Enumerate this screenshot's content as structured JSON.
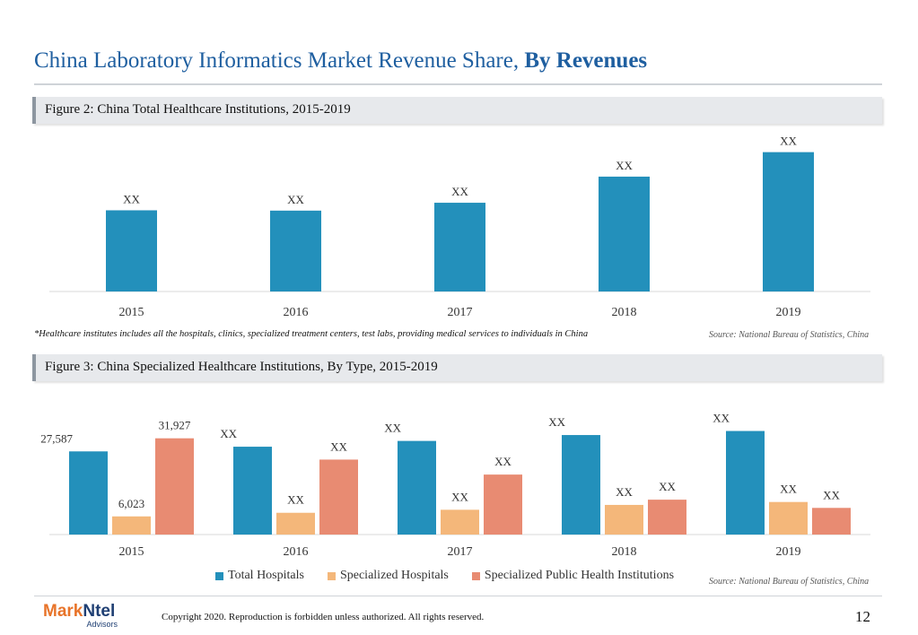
{
  "slide": {
    "title_main": "China Laboratory Informatics Market Revenue Share,",
    "title_bold": "By Revenues",
    "page_number": "12",
    "copyright": "Copyright 2020. Reproduction is forbidden unless authorized. All rights reserved.",
    "logo": {
      "part1": "Mark",
      "part2": "Ntel",
      "sub": "Advisors"
    }
  },
  "figure2": {
    "heading": "Figure 2: China Total Healthcare Institutions, 2015-2019",
    "footnote": "*Healthcare institutes includes all the hospitals, clinics, specialized treatment centers, test labs, providing medical services to individuals in China",
    "source": "Source: National Bureau of Statistics, China"
  },
  "figure3": {
    "heading": "Figure 3: China Specialized Healthcare Institutions, By Type, 2015-2019",
    "source": "Source: National Bureau of Statistics, China"
  },
  "chart_data": [
    {
      "type": "bar",
      "title": "Figure 2: China Total Healthcare Institutions, 2015-2019",
      "categories": [
        "2015",
        "2016",
        "2017",
        "2018",
        "2019"
      ],
      "values": [
        983528,
        983394,
        986649,
        997433,
        1007545
      ],
      "data_labels": [
        "XX",
        "XX",
        "XX",
        "XX",
        "XX"
      ],
      "ylim": [
        950000,
        1010000
      ],
      "grid": false,
      "colors": [
        "#2390bb"
      ]
    },
    {
      "type": "bar",
      "title": "Figure 3: China Specialized Healthcare Institutions, By Type, 2015-2019",
      "categories": [
        "2015",
        "2016",
        "2017",
        "2018",
        "2019"
      ],
      "series": [
        {
          "name": "Total Hospitals",
          "values": [
            27587,
            29140,
            31056,
            33009,
            34354
          ],
          "labels": [
            "27,587",
            "XX",
            "XX",
            "XX",
            "XX"
          ],
          "color": "#2390bb"
        },
        {
          "name": "Specialized Hospitals",
          "values": [
            6023,
            7220,
            8220,
            9833,
            10800
          ],
          "labels": [
            "6,023",
            "XX",
            "XX",
            "XX",
            "XX"
          ],
          "color": "#f4b77a"
        },
        {
          "name": "Specialized Public Health Institutions",
          "values": [
            31927,
            24866,
            19896,
            11570,
            8839
          ],
          "labels": [
            "31,927",
            "XX",
            "XX",
            "XX",
            "XX"
          ],
          "color": "#e88b72"
        }
      ],
      "ylim": [
        0,
        36000
      ],
      "grid": false,
      "legend": "bottom"
    }
  ]
}
